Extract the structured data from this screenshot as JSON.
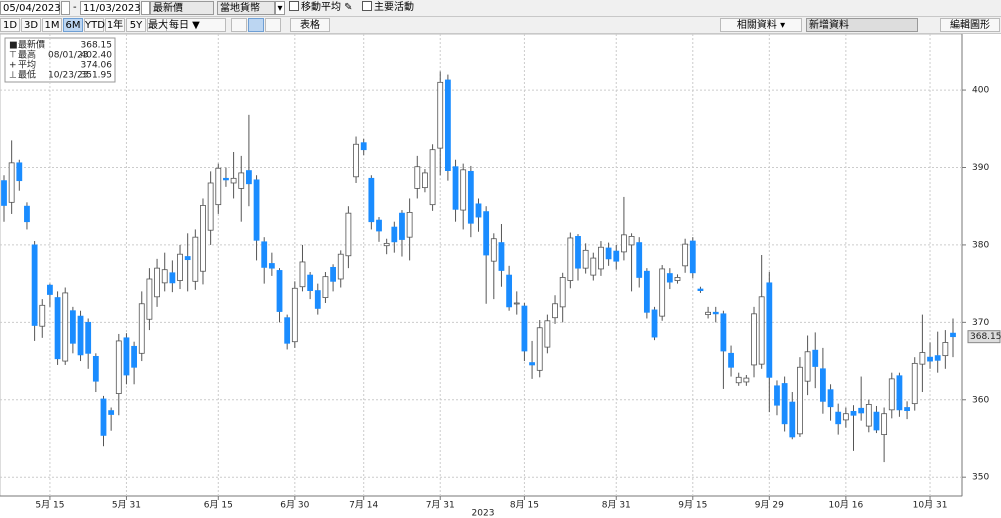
{
  "toolbar": {
    "start_date": "05/04/2023",
    "separator": "-",
    "end_date": "11/03/2023",
    "price_field": "最新價",
    "currency": "當地貨幣",
    "moving_average": "移動平均",
    "key_events": "主要活動",
    "periods": [
      "1D",
      "3D",
      "1M",
      "6M",
      "YTD",
      "1年",
      "5Y",
      "最大"
    ],
    "active_period": "6M",
    "frequency": "每日",
    "table": "表格",
    "related": "相關資料",
    "add_data": "新增資料",
    "edit": "編輯圖形"
  },
  "chart_data": {
    "type": "candlestick",
    "up_color": "#ffffff",
    "down_color": "#1a8cff",
    "grid": true,
    "x_label": "2023",
    "legend": [
      {
        "label": "最新價",
        "value": 368.15
      },
      {
        "label": "最高",
        "date": "08/01/23",
        "value": 402.4,
        "value_label": "402.40"
      },
      {
        "label": "平均",
        "value": 374.06
      },
      {
        "label": "最低",
        "date": "10/23/23",
        "value": 351.95
      }
    ],
    "ylim": [
      347.7,
      407.5
    ],
    "yticks": [
      350,
      360,
      370,
      380,
      390,
      400
    ],
    "categories": [
      null,
      null,
      null,
      null,
      null,
      null,
      "5月 15",
      null,
      null,
      null,
      null,
      null,
      null,
      null,
      null,
      null,
      "5月 31",
      null,
      null,
      null,
      null,
      null,
      null,
      null,
      null,
      null,
      null,
      null,
      "6月 15",
      null,
      null,
      null,
      null,
      null,
      null,
      null,
      null,
      null,
      "6月 30",
      null,
      null,
      null,
      null,
      null,
      null,
      null,
      null,
      "7月 14",
      null,
      null,
      null,
      null,
      null,
      null,
      null,
      null,
      null,
      "7月 31",
      null,
      null,
      null,
      null,
      null,
      null,
      null,
      null,
      null,
      null,
      "8月 15",
      null,
      null,
      null,
      null,
      null,
      null,
      null,
      null,
      null,
      null,
      null,
      "8月 31",
      null,
      null,
      null,
      null,
      null,
      null,
      null,
      null,
      null,
      "9月 15",
      null,
      null,
      null,
      null,
      null,
      null,
      null,
      null,
      null,
      "9月 29",
      null,
      null,
      null,
      null,
      null,
      null,
      null,
      null,
      null,
      "10月 16",
      null,
      null,
      null,
      null,
      null,
      null,
      null,
      null,
      null,
      null,
      "10月 31",
      null,
      null,
      null
    ],
    "open": [
      388.3,
      385.5,
      390.6,
      385,
      380,
      369.5,
      374.8,
      373.2,
      365,
      371.5,
      370.8,
      370,
      365.6,
      360.1,
      358.6,
      360.8,
      368,
      366.9,
      366,
      370.4,
      373.3,
      375.1,
      376.4,
      375.4,
      378.5,
      375.3,
      376.6,
      381.9,
      385.2,
      388.6,
      388,
      387.3,
      389.6,
      388.4,
      380.4,
      377.6,
      376.7,
      370.6,
      367.5,
      374.6,
      376.1,
      374.1,
      373.2,
      377.1,
      375.6,
      378.6,
      388.8,
      393.2,
      388.6,
      383.2,
      379.9,
      382.3,
      384.1,
      381,
      387.3,
      387.4,
      385.2,
      392.5,
      401.3,
      390.1,
      384.5,
      389.5,
      385.3,
      384.3,
      377.9,
      380.3,
      376.1,
      372.4,
      372.1,
      364.8,
      363.8,
      366.8,
      370.6,
      372,
      375.4,
      381.1,
      377,
      376.1,
      376.9,
      379.6,
      379.2,
      379.1,
      380,
      380.3,
      376.6,
      371.6,
      370.8,
      376.3,
      375.4,
      377.3,
      380.5,
      374.3,
      371,
      371.3,
      371.1,
      366,
      362.2,
      362.3,
      364.5,
      364.6,
      375.1,
      361.8,
      362.1,
      359.7,
      355.6,
      362.4,
      366.4,
      364,
      361.3,
      358.4,
      357.4,
      358.5,
      358.9,
      356.6,
      358.4,
      355.5,
      358.7,
      363.1,
      359,
      359.5,
      364.6,
      365.5,
      365.7,
      365.7,
      368.6
    ],
    "high": [
      389,
      393.5,
      391,
      385.5,
      380.5,
      373,
      375,
      374,
      374.5,
      372,
      371.5,
      370.5,
      366,
      360.5,
      359,
      368.5,
      368.6,
      367.5,
      374,
      377,
      378.2,
      379,
      378,
      380,
      381.5,
      382,
      386,
      389.5,
      390.5,
      390,
      392,
      391.5,
      396.8,
      389,
      381,
      379,
      377,
      371,
      375.3,
      380,
      376.5,
      375,
      376.5,
      377.5,
      379.3,
      385,
      394,
      393.7,
      389,
      383.6,
      380.8,
      383,
      384.5,
      386,
      391.5,
      389.8,
      393,
      402.4,
      402,
      391,
      390.5,
      390.2,
      386,
      385,
      381.5,
      382.7,
      377.3,
      374,
      372.5,
      367.6,
      370.3,
      371,
      373.5,
      376.4,
      381.6,
      381.4,
      380.2,
      379,
      380.5,
      380.3,
      380,
      386.2,
      381.5,
      381,
      377,
      372,
      377.4,
      377,
      376.2,
      380.8,
      381,
      374.6,
      372,
      372,
      371.5,
      367,
      363.5,
      363.2,
      372,
      378.7,
      376.5,
      362.5,
      363,
      361,
      365.5,
      368.3,
      368.7,
      366.7,
      362,
      359.5,
      359,
      359.3,
      363,
      360,
      359.2,
      359,
      363.5,
      363.5,
      359.8,
      365.5,
      371,
      367.4,
      368.8,
      369,
      370.5
    ],
    "low": [
      383,
      384,
      387,
      382,
      367.6,
      368,
      372,
      364.5,
      364.5,
      366,
      365,
      364,
      361,
      354,
      356,
      358,
      362,
      362,
      365,
      369,
      372,
      374,
      373.9,
      374.3,
      374,
      374.2,
      374.9,
      380,
      384,
      387.5,
      386,
      383,
      385,
      378,
      375,
      376,
      370,
      366.5,
      366.7,
      374,
      373,
      371,
      372.5,
      374,
      374.5,
      377,
      388,
      391.6,
      382,
      380.4,
      378.8,
      379,
      378.5,
      378,
      386,
      386.8,
      384.4,
      389,
      388.3,
      383,
      382,
      381,
      381.7,
      372.4,
      373,
      374.6,
      371.5,
      371,
      365,
      362.7,
      362.9,
      366,
      369.8,
      370,
      374.4,
      375.4,
      376.3,
      375.4,
      376,
      377.3,
      376.8,
      378,
      374,
      374.5,
      370.5,
      367.7,
      370.2,
      374.3,
      375,
      376.4,
      375.7,
      373.8,
      370.5,
      370,
      361.4,
      363,
      361.8,
      361.8,
      362.9,
      364,
      358.4,
      358,
      355.9,
      354.9,
      355.2,
      360.6,
      361.5,
      358.2,
      357.3,
      355.5,
      356.4,
      353.4,
      357.3,
      355.8,
      355.7,
      351.95,
      357.6,
      357.8,
      357.5,
      358.6,
      361,
      364,
      363.5,
      364,
      365.5
    ],
    "close": [
      385.1,
      390.6,
      388.3,
      383,
      369.6,
      372.2,
      373.6,
      365.3,
      373.8,
      367.3,
      365.8,
      366,
      362.4,
      355.4,
      358.1,
      367.6,
      363.2,
      364.2,
      372.4,
      375.6,
      377,
      376.8,
      375.1,
      378.8,
      378.1,
      381,
      385.1,
      388,
      389.9,
      388.4,
      388.6,
      389.3,
      387.9,
      380.6,
      377.1,
      377,
      371.4,
      367.3,
      374.4,
      377.8,
      374.1,
      371.8,
      375.9,
      375.3,
      378.8,
      384.1,
      393,
      392.3,
      383,
      381.8,
      380.2,
      380.4,
      380.7,
      384.2,
      390.1,
      389.3,
      392.3,
      401,
      389.6,
      384.6,
      389.7,
      382.8,
      383.6,
      378.7,
      380.8,
      376.7,
      372,
      372.5,
      366.3,
      364.5,
      369.3,
      370.2,
      372.4,
      375.8,
      380.9,
      377,
      379.3,
      378.3,
      379.7,
      378.2,
      377.9,
      381.3,
      381.1,
      375.8,
      371.3,
      368.1,
      376.9,
      375.2,
      375.8,
      380.1,
      376.4,
      374.1,
      371.3,
      371.1,
      366.3,
      364.2,
      362.9,
      362.8,
      371.1,
      373.3,
      362.9,
      359.3,
      356.9,
      355.2,
      364.2,
      366.2,
      364.3,
      359.8,
      359.1,
      356.9,
      358.2,
      358,
      358.3,
      359.4,
      356.1,
      358.2,
      362.7,
      358.7,
      358.6,
      364.7,
      366.1,
      365,
      365.1,
      367.4,
      368.15
    ]
  }
}
